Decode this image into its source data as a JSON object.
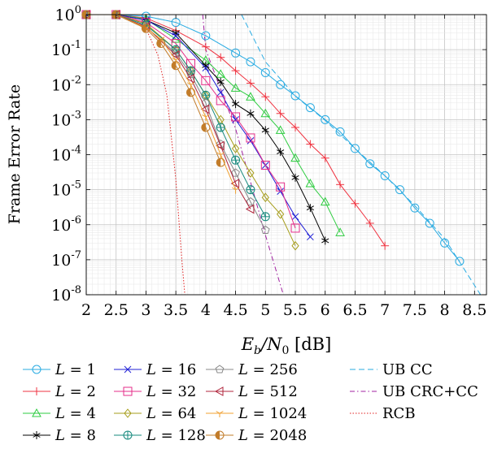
{
  "chart_data": {
    "type": "line",
    "title": "",
    "xlabel_main": "E",
    "xlabel_sub_b": "b",
    "xlabel_slash": "/N",
    "xlabel_sub_0": "0",
    "xlabel_unit": " [dB]",
    "ylabel": "Frame Error Rate",
    "xlim": [
      2,
      8.7
    ],
    "ylim_exp": [
      -8,
      0
    ],
    "y_scale": "log",
    "grid": "major and minor",
    "legend_placement": "below",
    "x_ticks": [
      "2",
      "2.5",
      "3",
      "3.5",
      "4",
      "4.5",
      "5",
      "5.5",
      "6",
      "6.5",
      "7",
      "7.5",
      "8",
      "8.5"
    ],
    "x_tick_values": [
      2,
      2.5,
      3,
      3.5,
      4,
      4.5,
      5,
      5.5,
      6,
      6.5,
      7,
      7.5,
      8,
      8.5
    ],
    "y_tick_exps": [
      0,
      -1,
      -2,
      -3,
      -4,
      -5,
      -6,
      -7,
      -8
    ],
    "y_tick_base": "10",
    "series": [
      {
        "name": "L = 1",
        "color": "#29abe2",
        "marker": "circle",
        "x": [
          2,
          2.5,
          3,
          3.5,
          4,
          4.5,
          4.75,
          5,
          5.25,
          5.5,
          5.75,
          6,
          6.25,
          6.5,
          6.75,
          7,
          7.25,
          7.5,
          7.75,
          8,
          8.25
        ],
        "y": [
          1,
          1,
          0.9,
          0.6,
          0.25,
          0.08,
          0.045,
          0.022,
          0.01,
          0.0048,
          0.0022,
          0.001,
          0.00045,
          0.00015,
          5.5e-05,
          2.5e-05,
          1e-05,
          3e-06,
          1.1e-06,
          3e-07,
          9e-08
        ]
      },
      {
        "name": "L = 2",
        "color": "#ef3340",
        "marker": "plus",
        "x": [
          2,
          2.5,
          3,
          3.5,
          4,
          4.25,
          4.5,
          4.75,
          5,
          5.25,
          5.5,
          5.75,
          6,
          6.25,
          6.5,
          6.75,
          7
        ],
        "y": [
          1,
          1,
          0.8,
          0.35,
          0.12,
          0.06,
          0.025,
          0.011,
          0.0045,
          0.0015,
          0.0006,
          0.0002,
          8e-05,
          1.4e-05,
          4e-06,
          1.1e-06,
          2.5e-07
        ]
      },
      {
        "name": "L = 4",
        "color": "#2ecc40",
        "marker": "triangle",
        "x": [
          2,
          2.5,
          3,
          3.5,
          4,
          4.25,
          4.5,
          4.75,
          5,
          5.25,
          5.5,
          5.75,
          6,
          6.25
        ],
        "y": [
          1,
          1,
          0.75,
          0.2,
          0.05,
          0.02,
          0.008,
          0.0045,
          0.0015,
          0.0005,
          8e-05,
          1.5e-05,
          4.5e-06,
          6e-07
        ]
      },
      {
        "name": "L = 8",
        "color": "#000000",
        "marker": "star",
        "x": [
          2,
          2.5,
          3,
          3.5,
          4,
          4.25,
          4.5,
          4.75,
          5,
          5.25,
          5.5,
          5.75,
          6
        ],
        "y": [
          1,
          1,
          0.7,
          0.3,
          0.035,
          0.012,
          0.0028,
          0.0015,
          0.0005,
          0.00012,
          2.2e-05,
          3e-06,
          3.5e-07
        ]
      },
      {
        "name": "L = 16",
        "color": "#1f1fd6",
        "marker": "x",
        "x": [
          2,
          2.5,
          3,
          3.5,
          4,
          4.25,
          4.5,
          4.75,
          5,
          5.25,
          5.5,
          5.75
        ],
        "y": [
          1,
          1,
          0.7,
          0.25,
          0.03,
          0.006,
          0.001,
          0.00025,
          5e-05,
          9e-06,
          1.7e-06,
          4.5e-07
        ]
      },
      {
        "name": "L = 32",
        "color": "#e62e8a",
        "marker": "square",
        "x": [
          2,
          2.5,
          3,
          3.5,
          3.75,
          4,
          4.25,
          4.5,
          4.75,
          5,
          5.25,
          5.5
        ],
        "y": [
          1,
          1,
          0.6,
          0.15,
          0.04,
          0.013,
          0.0035,
          0.0012,
          0.0003,
          5e-05,
          1.2e-05,
          8e-07
        ]
      },
      {
        "name": "L = 64",
        "color": "#a69d1b",
        "marker": "diamond",
        "x": [
          2,
          2.5,
          3,
          3.5,
          3.75,
          4,
          4.25,
          4.5,
          4.75,
          5,
          5.25,
          5.5
        ],
        "y": [
          1,
          1,
          0.55,
          0.1,
          0.025,
          0.005,
          0.001,
          0.00015,
          3e-05,
          6e-06,
          2e-06,
          2.5e-07
        ]
      },
      {
        "name": "L = 128",
        "color": "#16897d",
        "marker": "circleplus",
        "x": [
          2,
          2.5,
          3,
          3.5,
          3.75,
          4,
          4.25,
          4.5,
          4.75,
          5
        ],
        "y": [
          1,
          1,
          0.5,
          0.1,
          0.025,
          0.005,
          0.0006,
          7e-05,
          1e-05,
          1.7e-06
        ]
      },
      {
        "name": "L = 256",
        "color": "#888888",
        "marker": "pentagon",
        "x": [
          2,
          2.5,
          3,
          3.5,
          3.75,
          4,
          4.25,
          4.5,
          4.75,
          5
        ],
        "y": [
          1,
          1,
          0.45,
          0.08,
          0.02,
          0.003,
          0.0002,
          3e-05,
          4.5e-06,
          7e-07
        ]
      },
      {
        "name": "L = 512",
        "color": "#b0253c",
        "marker": "triangleleft",
        "x": [
          2,
          2.5,
          3,
          3.5,
          3.75,
          4,
          4.25,
          4.5,
          4.75
        ],
        "y": [
          1,
          1,
          0.45,
          0.07,
          0.015,
          0.002,
          0.00018,
          1.5e-05,
          2.8e-06
        ]
      },
      {
        "name": "L = 1024",
        "color": "#f0a030",
        "marker": "tridown",
        "x": [
          2,
          2.5,
          3,
          3.25,
          3.5,
          3.75,
          4,
          4.25,
          4.5
        ],
        "y": [
          1,
          1,
          0.42,
          0.2,
          0.05,
          0.01,
          0.0012,
          0.0001,
          1e-05
        ]
      },
      {
        "name": "L = 2048",
        "color": "#c27c2a",
        "marker": "halfcircle",
        "x": [
          2,
          2.5,
          3,
          3.25,
          3.5,
          3.75,
          4,
          4.25
        ],
        "y": [
          1,
          1,
          0.4,
          0.15,
          0.035,
          0.006,
          0.0006,
          6e-05
        ]
      }
    ],
    "bounds": [
      {
        "name": "UB CC",
        "color": "#29abe2",
        "dash": "7,4",
        "x": [
          4.6,
          5,
          5.5,
          6,
          6.5,
          7,
          7.5,
          8,
          8.6
        ],
        "y": [
          1,
          0.045,
          0.0047,
          0.00095,
          0.00015,
          2.5e-05,
          3.5e-06,
          4e-07,
          1e-08
        ]
      },
      {
        "name": "UB CRC+CC",
        "color": "#a020a0",
        "dash": "6,3,1.5,3",
        "x": [
          3.95,
          4.0,
          4.5,
          5,
          5.3
        ],
        "y": [
          1,
          0.1,
          0.00055,
          5e-07,
          1e-08
        ]
      },
      {
        "name": "RCB",
        "color": "#e02020",
        "dash": "1.5,2",
        "x": [
          2.5,
          2.8,
          3,
          3.2,
          3.35,
          3.5,
          3.6,
          3.65
        ],
        "y": [
          0.97,
          0.8,
          0.4,
          0.07,
          0.005,
          2e-05,
          1e-07,
          1e-08
        ]
      }
    ]
  }
}
